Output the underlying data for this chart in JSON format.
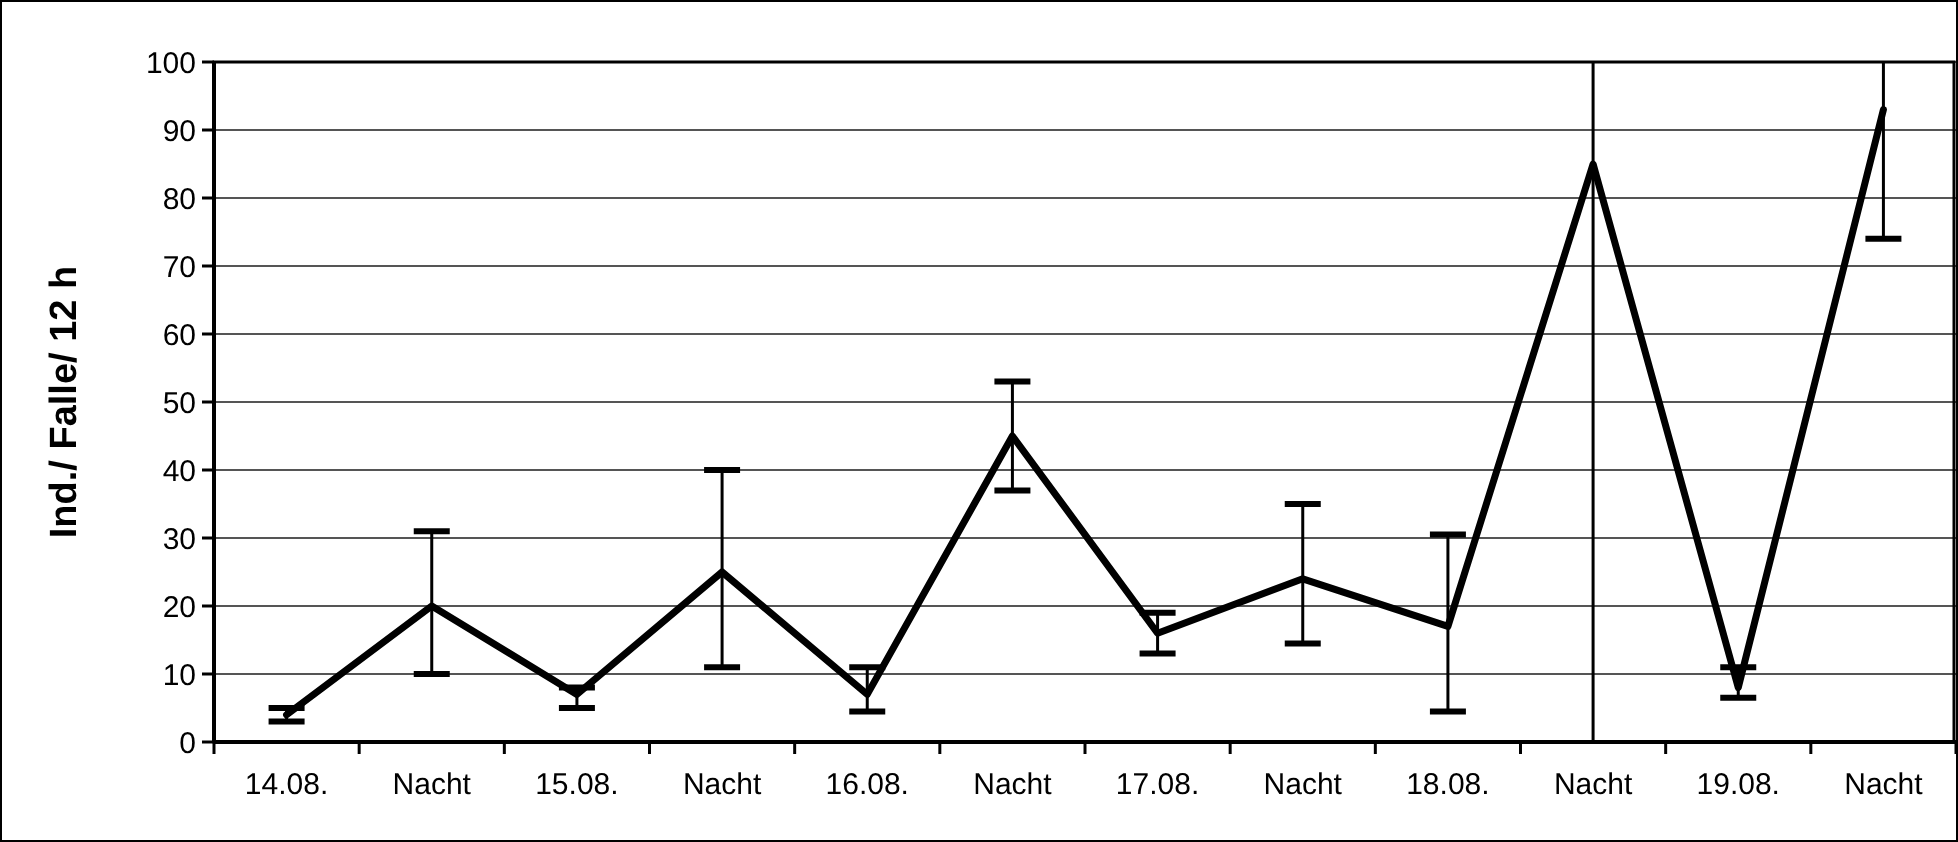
{
  "chart_data": {
    "type": "line",
    "ylabel": "Ind./ Falle/ 12 h",
    "categories": [
      "14.08.",
      "Nacht",
      "15.08.",
      "Nacht",
      "16.08.",
      "Nacht",
      "17.08.",
      "Nacht",
      "18.08.",
      "Nacht",
      "19.08.",
      "Nacht"
    ],
    "series": [
      {
        "color": "#000000",
        "values": [
          4,
          20,
          7,
          25,
          7,
          45,
          16,
          24,
          17,
          85,
          8,
          93
        ],
        "errors": [
          [
            3,
            5
          ],
          [
            10,
            31
          ],
          [
            5,
            8
          ],
          [
            11,
            40
          ],
          [
            4.5,
            11
          ],
          [
            37,
            53
          ],
          [
            13,
            19
          ],
          [
            14.5,
            35
          ],
          [
            4.5,
            30.5
          ],
          [
            0,
            100
          ],
          [
            6.5,
            11
          ],
          [
            74,
            100
          ]
        ]
      }
    ],
    "ylim": [
      0,
      100
    ],
    "yticks": [
      0,
      10,
      20,
      30,
      40,
      50,
      60,
      70,
      80,
      90,
      100
    ],
    "grid": "y",
    "marker": "none",
    "line_style": "solid"
  }
}
